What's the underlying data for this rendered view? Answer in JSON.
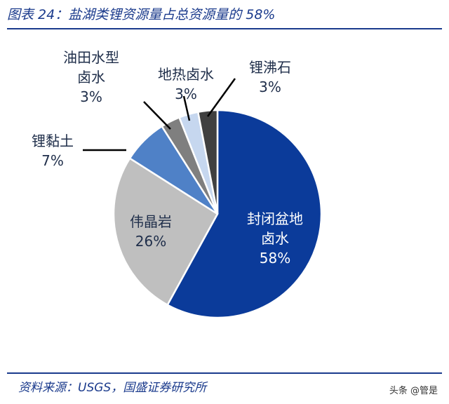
{
  "title": "图表 24：盐湖类锂资源量占总资源量的 58%",
  "source": "资料来源：USGS，国盛证券研究所",
  "watermark": "头条 @管是",
  "chart_data": {
    "type": "pie",
    "title": "图表 24：盐湖类锂资源量占总资源量的 58%",
    "slices": [
      {
        "name": "封闭盆地卤水",
        "line1": "封闭盆地",
        "line2": "卤水",
        "pct_label": "58%",
        "value": 58,
        "color": "#0b3b9a"
      },
      {
        "name": "伟晶岩",
        "line1": "伟晶岩",
        "line2": "",
        "pct_label": "26%",
        "value": 26,
        "color": "#bfbfbf"
      },
      {
        "name": "锂黏土",
        "line1": "锂黏土",
        "line2": "",
        "pct_label": "7%",
        "value": 7,
        "color": "#4f81c7"
      },
      {
        "name": "油田水型卤水",
        "line1": "油田水型",
        "line2": "卤水",
        "pct_label": "3%",
        "value": 3,
        "color": "#7f7f7f"
      },
      {
        "name": "地热卤水",
        "line1": "地热卤水",
        "line2": "",
        "pct_label": "3%",
        "value": 3,
        "color": "#c6d7ef"
      },
      {
        "name": "锂沸石",
        "line1": "锂沸石",
        "line2": "",
        "pct_label": "3%",
        "value": 3,
        "color": "#404040"
      }
    ]
  }
}
